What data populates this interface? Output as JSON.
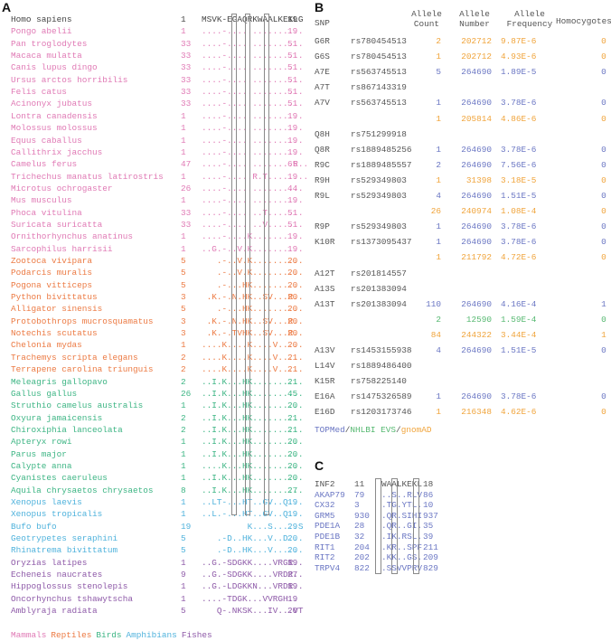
{
  "panel_a": {
    "label": "A",
    "rows": [
      {
        "species": "Homo sapiens",
        "start": "1",
        "seq": "MSVK-EGAQRKWAALKEKLG",
        "end": "19",
        "group": "hum"
      },
      {
        "species": "Pongo abelii",
        "start": "1",
        "seq": "....-...............",
        "end": "19",
        "group": "mam"
      },
      {
        "species": "Pan troglodytes",
        "start": "33",
        "seq": "....-...............",
        "end": "51",
        "group": "mam"
      },
      {
        "species": "Macaca mulatta",
        "start": "33",
        "seq": "....-...............",
        "end": "51",
        "group": "mam"
      },
      {
        "species": "Canis lupus dingo",
        "start": "33",
        "seq": "....-...............",
        "end": "51",
        "group": "mam"
      },
      {
        "species": "Ursus arctos horribilis",
        "start": "33",
        "seq": "....-...............",
        "end": "51",
        "group": "mam"
      },
      {
        "species": "Felis catus",
        "start": "33",
        "seq": "....-...............",
        "end": "51",
        "group": "mam"
      },
      {
        "species": "Acinonyx jubatus",
        "start": "33",
        "seq": "....-...............",
        "end": "51",
        "group": "mam"
      },
      {
        "species": "Lontra canadensis",
        "start": "1",
        "seq": "....-...............",
        "end": "19",
        "group": "mam"
      },
      {
        "species": "Molossus molossus",
        "start": "1",
        "seq": "....-...............",
        "end": "19",
        "group": "mam"
      },
      {
        "species": "Equus caballus",
        "start": "1",
        "seq": "....-...............",
        "end": "19",
        "group": "mam"
      },
      {
        "species": "Callithrix jacchus",
        "start": "1",
        "seq": "....-...............",
        "end": "19",
        "group": "mam"
      },
      {
        "species": "Camelus ferus",
        "start": "47",
        "seq": "....-.............R..",
        "end": "65",
        "group": "mam"
      },
      {
        "species": "Trichechus manatus latirostris",
        "start": "1",
        "seq": "....-.....R.T........",
        "end": "19",
        "group": "mam"
      },
      {
        "species": "Microtus ochrogaster",
        "start": "26",
        "seq": "....-...............",
        "end": "44",
        "group": "mam"
      },
      {
        "species": "Mus musculus",
        "start": "1",
        "seq": "....-...............",
        "end": "19",
        "group": "mam"
      },
      {
        "species": "Phoca vitulina",
        "start": "33",
        "seq": "....-.......T.......",
        "end": "51",
        "group": "mam"
      },
      {
        "species": "Suricata suricatta",
        "start": "33",
        "seq": "....-.......V.......",
        "end": "51",
        "group": "mam"
      },
      {
        "species": "Ornithorhynchus anatinus",
        "start": "1",
        "seq": "....-....K..........",
        "end": "19",
        "group": "mam"
      },
      {
        "species": "Sarcophilus harrisii",
        "start": "1",
        "seq": "..G.-..V.K..........",
        "end": "19",
        "group": "mam"
      },
      {
        "species": "Zootoca vivipara",
        "start": "5",
        "seq": "   .-..V.K..........",
        "end": "20",
        "group": "rep"
      },
      {
        "species": "Podarcis muralis",
        "start": "5",
        "seq": "   .-..V.K..........",
        "end": "20",
        "group": "rep"
      },
      {
        "species": "Pogona vitticeps",
        "start": "5",
        "seq": "   .-...HK..........",
        "end": "20",
        "group": "rep"
      },
      {
        "species": "Python bivittatus",
        "start": "3",
        "seq": " .K.-.N.HK..SV...R..",
        "end": "20",
        "group": "rep"
      },
      {
        "species": "Alligator sinensis",
        "start": "5",
        "seq": "   .-...HK..........",
        "end": "20",
        "group": "rep"
      },
      {
        "species": "Protobothrops mucrosquamatus",
        "start": "3",
        "seq": " .K.-.N.HK..SV...R..",
        "end": "20",
        "group": "rep"
      },
      {
        "species": "Notechis scutatus",
        "start": "3",
        "seq": " .K.-.TVHK..SV...R..",
        "end": "20",
        "group": "rep"
      },
      {
        "species": "Chelonia mydas",
        "start": "1",
        "seq": "....K....K....V.....",
        "end": "20",
        "group": "rep"
      },
      {
        "species": "Trachemys scripta elegans",
        "start": "2",
        "seq": "....K....K....V.....",
        "end": "21",
        "group": "rep"
      },
      {
        "species": "Terrapene carolina triunguis",
        "start": "2",
        "seq": "....K....K....V.....",
        "end": "21",
        "group": "rep"
      },
      {
        "species": "Meleagris gallopavo",
        "start": "2",
        "seq": "..I.K...HK..........",
        "end": "21",
        "group": "bir"
      },
      {
        "species": "Gallus gallus",
        "start": "26",
        "seq": "..I.K...HK..........",
        "end": "45",
        "group": "bir"
      },
      {
        "species": "Struthio camelus australis",
        "start": "1",
        "seq": "..I.K...HK..........",
        "end": "20",
        "group": "bir"
      },
      {
        "species": "Oxyura jamaicensis",
        "start": "2",
        "seq": "..I.K...HK..........",
        "end": "21",
        "group": "bir"
      },
      {
        "species": "Chiroxiphia lanceolata",
        "start": "2",
        "seq": "..I.K...HK..........",
        "end": "21",
        "group": "bir"
      },
      {
        "species": "Apteryx rowi",
        "start": "1",
        "seq": "..I.K...HK..........",
        "end": "20",
        "group": "bir"
      },
      {
        "species": "Parus major",
        "start": "1",
        "seq": "..I.K...HK..........",
        "end": "20",
        "group": "bir"
      },
      {
        "species": "Calypte anna",
        "start": "1",
        "seq": "....K...HK..........",
        "end": "20",
        "group": "bir"
      },
      {
        "species": "Cyanistes caeruleus",
        "start": "1",
        "seq": "..I.K...HK..........",
        "end": "20",
        "group": "bir"
      },
      {
        "species": "Aquila chrysaetos chrysaetos",
        "start": "8",
        "seq": "..I.K...HK..........",
        "end": "27",
        "group": "bir"
      },
      {
        "species": "Xenopus laevis",
        "start": "1",
        "seq": "..LT-...HT..GV..Q...",
        "end": "19",
        "group": "amp"
      },
      {
        "species": "Xenopus tropicalis",
        "start": "1",
        "seq": "..L.-...HT..GV..Q...",
        "end": "19",
        "group": "amp"
      },
      {
        "species": "Bufo bufo",
        "start": "19",
        "seq": "         K...S.....S",
        "end": "29",
        "group": "amp"
      },
      {
        "species": "Geotrypetes seraphini",
        "start": "5",
        "seq": "   .-D..HK...V..D...",
        "end": "20",
        "group": "amp"
      },
      {
        "species": "Rhinatrema bivittatum",
        "start": "5",
        "seq": "   .-D..HK...V......",
        "end": "20",
        "group": "amp"
      },
      {
        "species": "Oryzias latipes",
        "start": "1",
        "seq": "..G.-SDGKK....VRGR..",
        "end": "19",
        "group": "fis"
      },
      {
        "species": "Echeneis naucrates",
        "start": "9",
        "seq": "..G.-SDGKK....VRDR..",
        "end": "27",
        "group": "fis"
      },
      {
        "species": "Hippoglossus stenolepis",
        "start": "1",
        "seq": "..G.-LDGKKN...VRDR..",
        "end": "19",
        "group": "fis"
      },
      {
        "species": "Oncorhynchus tshawytscha",
        "start": "1",
        "seq": "....-TDGK...VVRGH..",
        "end": "19",
        "group": "fis"
      },
      {
        "species": "Amblyraja radiata",
        "start": "5",
        "seq": "   Q-.NKSK...IV...VT",
        "end": "20",
        "group": "fis"
      }
    ],
    "legend": [
      {
        "label": "Mammals",
        "group": "mam"
      },
      {
        "label": "Reptiles",
        "group": "rep"
      },
      {
        "label": "Birds",
        "group": "bir"
      },
      {
        "label": "Amphibians",
        "group": "amp"
      },
      {
        "label": "Fishes",
        "group": "fis"
      }
    ]
  },
  "panel_b": {
    "label": "B",
    "headers": {
      "snp": "SNP",
      "count": "Allele\nCount",
      "number": "Allele\nNumber",
      "frequency": "Allele\nFrequency",
      "homo": "Homocygotes"
    },
    "rows": [
      {
        "snp": "G6R",
        "rs": "rs780454513",
        "count": "2",
        "number": "202712",
        "freq": "9.87E-6",
        "homo": "0",
        "src": "gno"
      },
      {
        "snp": "G6S",
        "rs": "rs780454513",
        "count": "1",
        "number": "202712",
        "freq": "4.93E-6",
        "homo": "0",
        "src": "gno"
      },
      {
        "snp": "A7E",
        "rs": "rs563745513",
        "count": "5",
        "number": "264690",
        "freq": "1.89E-5",
        "homo": "0",
        "src": "top"
      },
      {
        "snp": "A7T",
        "rs": "rs867143319",
        "count": "",
        "number": "",
        "freq": "",
        "homo": "",
        "src": "top"
      },
      {
        "snp": "A7V",
        "rs": "rs563745513",
        "count": "1",
        "number": "264690",
        "freq": "3.78E-6",
        "homo": "0",
        "src": "top"
      },
      {
        "snp": "",
        "rs": "",
        "count": "1",
        "number": "205814",
        "freq": "4.86E-6",
        "homo": "0",
        "src": "gno"
      },
      {
        "snp": "Q8H",
        "rs": "rs751299918",
        "count": "",
        "number": "",
        "freq": "",
        "homo": "",
        "src": "top"
      },
      {
        "snp": "Q8R",
        "rs": "rs1889485256",
        "count": "1",
        "number": "264690",
        "freq": "3.78E-6",
        "homo": "0",
        "src": "top"
      },
      {
        "snp": "R9C",
        "rs": "rs1889485557",
        "count": "2",
        "number": "264690",
        "freq": "7.56E-6",
        "homo": "0",
        "src": "top"
      },
      {
        "snp": "R9H",
        "rs": "rs529349803",
        "count": "1",
        "number": "31398",
        "freq": "3.18E-5",
        "homo": "0",
        "src": "gno"
      },
      {
        "snp": "R9L",
        "rs": "rs529349803",
        "count": "4",
        "number": "264690",
        "freq": "1.51E-5",
        "homo": "0",
        "src": "top"
      },
      {
        "snp": "",
        "rs": "",
        "count": "26",
        "number": "240974",
        "freq": "1.08E-4",
        "homo": "0",
        "src": "gno"
      },
      {
        "snp": "R9P",
        "rs": "rs529349803",
        "count": "1",
        "number": "264690",
        "freq": "3.78E-6",
        "homo": "0",
        "src": "top"
      },
      {
        "snp": "K10R",
        "rs": "rs1373095437",
        "count": "1",
        "number": "264690",
        "freq": "3.78E-6",
        "homo": "0",
        "src": "top"
      },
      {
        "snp": "",
        "rs": "",
        "count": "1",
        "number": "211792",
        "freq": "4.72E-6",
        "homo": "0",
        "src": "gno"
      },
      {
        "snp": "A12T",
        "rs": "rs201814557",
        "count": "",
        "number": "",
        "freq": "",
        "homo": "",
        "src": "top"
      },
      {
        "snp": "A13S",
        "rs": "rs201383094",
        "count": "",
        "number": "",
        "freq": "",
        "homo": "",
        "src": "top"
      },
      {
        "snp": "A13T",
        "rs": "rs201383094",
        "count": "110",
        "number": "264690",
        "freq": "4.16E-4",
        "homo": "1",
        "src": "top"
      },
      {
        "snp": "",
        "rs": "",
        "count": "2",
        "number": "12590",
        "freq": "1.59E-4",
        "homo": "0",
        "src": "nhl"
      },
      {
        "snp": "",
        "rs": "",
        "count": "84",
        "number": "244322",
        "freq": "3.44E-4",
        "homo": "1",
        "src": "gno"
      },
      {
        "snp": "A13V",
        "rs": "rs1453155938",
        "count": "4",
        "number": "264690",
        "freq": "1.51E-5",
        "homo": "0",
        "src": "top"
      },
      {
        "snp": "L14V",
        "rs": "rs1889486400",
        "count": "",
        "number": "",
        "freq": "",
        "homo": "",
        "src": "top"
      },
      {
        "snp": "K15R",
        "rs": "rs758225140",
        "count": "",
        "number": "",
        "freq": "",
        "homo": "",
        "src": "top"
      },
      {
        "snp": "E16A",
        "rs": "rs1475326589",
        "count": "1",
        "number": "264690",
        "freq": "3.78E-6",
        "homo": "0",
        "src": "top"
      },
      {
        "snp": "E16D",
        "rs": "rs1203173746",
        "count": "1",
        "number": "216348",
        "freq": "4.62E-6",
        "homo": "0",
        "src": "gno"
      }
    ],
    "source_legend": [
      {
        "label": "TOPMed",
        "src": "top"
      },
      {
        "label": "/",
        "src": "sep"
      },
      {
        "label": "NHLBI EVS",
        "src": "nhl"
      },
      {
        "label": "/",
        "src": "sep"
      },
      {
        "label": "gnomAD",
        "src": "gno"
      }
    ]
  },
  "panel_c": {
    "label": "C",
    "rows": [
      {
        "name": "INF2",
        "start": "11",
        "seq": "WAALKEKL",
        "end": "18",
        "style": "gray"
      },
      {
        "name": "AKAP79",
        "start": "79",
        "seq": "..S..RLV",
        "end": "86",
        "style": "blue"
      },
      {
        "name": "CX32",
        "start": "3",
        "seq": ".TG.YTL.",
        "end": "10",
        "style": "blue"
      },
      {
        "name": "GRM5",
        "start": "930",
        "seq": ".QR.SIHI",
        "end": "937",
        "style": "blue"
      },
      {
        "name": "PDE1A",
        "start": "28",
        "seq": ".QR..GI.",
        "end": "35",
        "style": "blue"
      },
      {
        "name": "PDE1B",
        "start": "32",
        "seq": ".IK.RSL.",
        "end": "39",
        "style": "blue"
      },
      {
        "name": "RIT1",
        "start": "204",
        "seq": ".KR..SPF",
        "end": "211",
        "style": "blue"
      },
      {
        "name": "RIT2",
        "start": "202",
        "seq": ".KK..GS.",
        "end": "209",
        "style": "blue"
      },
      {
        "name": "TRPV4",
        "start": "822",
        "seq": ".SSVVPRV",
        "end": "829",
        "style": "blue"
      }
    ]
  }
}
